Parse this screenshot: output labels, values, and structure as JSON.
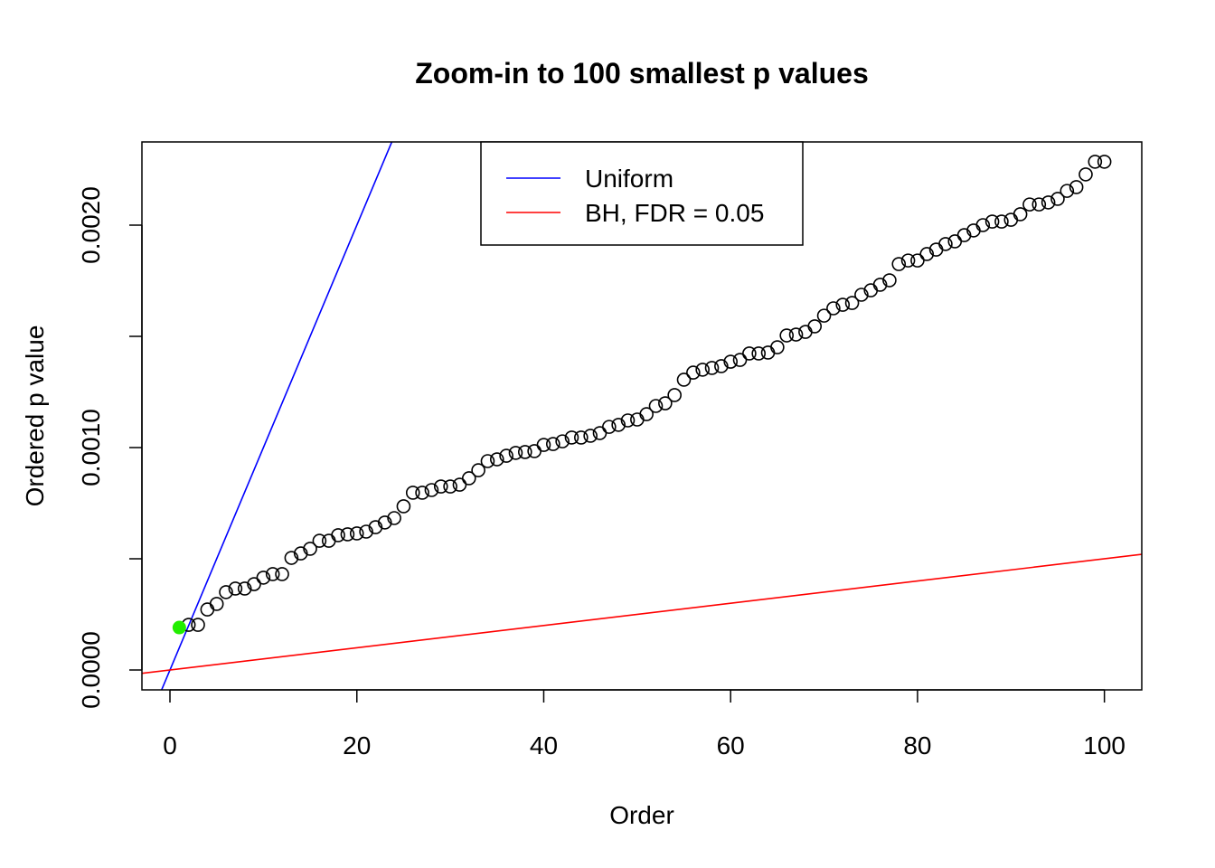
{
  "chart_data": {
    "type": "scatter",
    "title": "Zoom-in to 100 smallest p values",
    "xlabel": "Order",
    "ylabel": "Ordered p value",
    "xlim": [
      -3,
      104
    ],
    "ylim": [
      -8.94e-05,
      0.002374
    ],
    "x_ticks": [
      0,
      20,
      40,
      60,
      80,
      100
    ],
    "x_tick_labels": [
      "0",
      "20",
      "40",
      "60",
      "80",
      "100"
    ],
    "y_ticks": [
      0,
      0.0005,
      0.001,
      0.0015,
      0.002
    ],
    "y_tick_labels": [
      "0.0000",
      "",
      "0.0010",
      "",
      "0.0020"
    ],
    "grid": false,
    "points": {
      "x_start": 1,
      "values": [
        0.000191,
        0.000203,
        0.000203,
        0.000272,
        0.000297,
        0.00035,
        0.000366,
        0.000366,
        0.000386,
        0.000415,
        0.000431,
        0.000431,
        0.000504,
        0.000524,
        0.000545,
        0.000581,
        0.000581,
        0.000606,
        0.00061,
        0.000614,
        0.000622,
        0.000642,
        0.000663,
        0.000683,
        0.000736,
        0.000797,
        0.000797,
        0.000809,
        0.000825,
        0.000825,
        0.000833,
        0.000862,
        0.000898,
        0.000939,
        0.000947,
        0.000963,
        0.000976,
        0.00098,
        0.000984,
        0.001012,
        0.001016,
        0.001028,
        0.001045,
        0.001045,
        0.001053,
        0.001065,
        0.001093,
        0.001102,
        0.001122,
        0.001126,
        0.00115,
        0.001187,
        0.001199,
        0.001236,
        0.001305,
        0.001337,
        0.00135,
        0.001358,
        0.001366,
        0.001386,
        0.001394,
        0.001423,
        0.001423,
        0.001427,
        0.001451,
        0.001504,
        0.001508,
        0.00152,
        0.001545,
        0.001593,
        0.001626,
        0.001642,
        0.00165,
        0.001687,
        0.001707,
        0.001732,
        0.001752,
        0.001825,
        0.001841,
        0.001841,
        0.00187,
        0.00189,
        0.001915,
        0.001927,
        0.001955,
        0.001976,
        0.002,
        0.002016,
        0.002016,
        0.002024,
        0.002049,
        0.002093,
        0.002093,
        0.002102,
        0.002118,
        0.002154,
        0.002171,
        0.002228,
        0.002285,
        0.002285
      ],
      "highlighted_index": 0,
      "highlight_color": "#22ee00"
    },
    "lines": [
      {
        "name": "Uniform",
        "slope": 0.0001,
        "intercept": 0,
        "color": "#0000ff"
      },
      {
        "name": "BH, FDR = 0.05",
        "slope": 5e-06,
        "intercept": 0,
        "color": "#ff0000"
      }
    ],
    "legend": {
      "placement": "top-center",
      "entries": [
        "Uniform",
        "BH, FDR = 0.05"
      ]
    }
  }
}
